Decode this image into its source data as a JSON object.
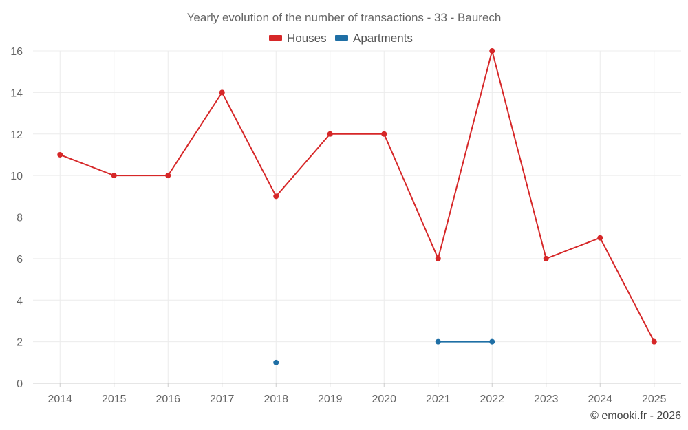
{
  "chart_data": {
    "type": "line",
    "title": "Yearly evolution of the number of transactions - 33 - Baurech",
    "xlabel": "",
    "ylabel": "",
    "categories": [
      "2014",
      "2015",
      "2016",
      "2017",
      "2018",
      "2019",
      "2020",
      "2021",
      "2022",
      "2023",
      "2024",
      "2025"
    ],
    "ylim": [
      0,
      16
    ],
    "yticks": [
      0,
      2,
      4,
      6,
      8,
      10,
      12,
      14,
      16
    ],
    "grid": true,
    "legend_position": "top-center",
    "series": [
      {
        "name": "Houses",
        "color": "#d62728",
        "values": [
          11,
          10,
          10,
          14,
          9,
          12,
          12,
          6,
          16,
          6,
          7,
          2
        ]
      },
      {
        "name": "Apartments",
        "color": "#1f6fa5",
        "values": [
          null,
          null,
          null,
          null,
          1,
          null,
          null,
          2,
          2,
          null,
          null,
          null
        ]
      }
    ],
    "credit": "© emooki.fr - 2026"
  }
}
